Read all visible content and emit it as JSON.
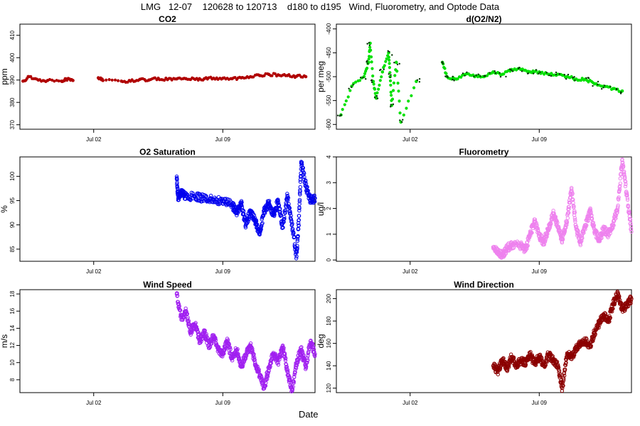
{
  "page": {
    "title": "LMG   12-07    120628 to 120713    d180 to d195   Wind, Fluorometry, and Optode Data",
    "xlabel": "Date"
  },
  "chart_data": [
    {
      "type": "scatter",
      "title": "CO2",
      "ylabel": "ppm",
      "x_axis": {
        "kind": "date",
        "range": [
          "2012-06-28",
          "2012-07-14"
        ],
        "ticks": [
          "Jul 02",
          "Jul 09"
        ]
      },
      "ylim": [
        368,
        415
      ],
      "yticks": [
        370,
        380,
        390,
        400,
        410
      ],
      "color": "#b00000",
      "marker": "circle",
      "series": [
        {
          "points": [
            [
              "2012-06-28T04:00",
              389.5
            ],
            [
              "2012-06-28T12:00",
              391.5
            ],
            [
              "2012-06-29T00:00",
              390
            ],
            [
              "2012-06-29T12:00",
              389.8
            ],
            [
              "2012-06-30T06:00",
              389.5
            ],
            [
              "2012-06-30T12:00",
              390.5
            ],
            [
              "2012-06-30T21:00",
              389.8
            ],
            [
              "2012-07-02T06:00",
              391
            ],
            [
              "2012-07-02T12:00",
              389.8
            ],
            [
              "2012-07-03T12:00",
              389.5
            ],
            [
              "2012-07-04T00:00",
              389.5
            ],
            [
              "2012-07-04T12:00",
              390.3
            ],
            [
              "2012-07-05T00:00",
              390
            ],
            [
              "2012-07-05T12:00",
              390.8
            ],
            [
              "2012-07-06T00:00",
              390.2
            ],
            [
              "2012-07-06T12:00",
              390.5
            ],
            [
              "2012-07-07T00:00",
              390.6
            ],
            [
              "2012-07-07T12:00",
              390.3
            ],
            [
              "2012-07-08T00:00",
              390.6
            ],
            [
              "2012-07-08T12:00",
              390.8
            ],
            [
              "2012-07-09T00:00",
              390.8
            ],
            [
              "2012-07-09T12:00",
              390.6
            ],
            [
              "2012-07-10T00:00",
              391
            ],
            [
              "2012-07-10T12:00",
              391.5
            ],
            [
              "2012-07-11T00:00",
              392
            ],
            [
              "2012-07-11T12:00",
              392.5
            ],
            [
              "2012-07-12T00:00",
              392.3
            ],
            [
              "2012-07-12T12:00",
              392
            ],
            [
              "2012-07-13T00:00",
              391.7
            ],
            [
              "2012-07-13T12:00",
              391.5
            ]
          ]
        }
      ]
    },
    {
      "type": "scatter",
      "title": "d(O2/N2)",
      "ylabel": "per meg",
      "x_axis": {
        "kind": "date",
        "range": [
          "2012-06-28",
          "2012-07-14"
        ],
        "ticks": [
          "Jul 02",
          "Jul 09"
        ]
      },
      "ylim": [
        -610,
        -390
      ],
      "yticks": [
        -600,
        -550,
        -500,
        -450,
        -400
      ],
      "color": "#00e000",
      "secondary_color": "#003000",
      "marker": "circle",
      "series": [
        {
          "points": [
            [
              "2012-06-28T06:00",
              -580
            ],
            [
              "2012-06-28T20:00",
              -520
            ],
            [
              "2012-06-29T12:00",
              -500
            ],
            [
              "2012-06-29T18:00",
              -470
            ],
            [
              "2012-06-29T20:00",
              -430
            ],
            [
              "2012-06-30T00:00",
              -510
            ],
            [
              "2012-06-30T04:00",
              -545
            ],
            [
              "2012-06-30T12:00",
              -490
            ],
            [
              "2012-06-30T20:00",
              -450
            ],
            [
              "2012-06-30T22:00",
              -500
            ],
            [
              "2012-07-01T00:00",
              -560
            ],
            [
              "2012-07-01T06:00",
              -470
            ],
            [
              "2012-07-01T12:00",
              -595
            ],
            [
              "2012-07-02T08:00",
              -510
            ],
            [
              "2012-07-03T18:00",
              -470
            ],
            [
              "2012-07-04T00:00",
              -500
            ],
            [
              "2012-07-04T12:00",
              -505
            ],
            [
              "2012-07-05T00:00",
              -495
            ],
            [
              "2012-07-05T12:00",
              -500
            ],
            [
              "2012-07-06T00:00",
              -500
            ],
            [
              "2012-07-06T12:00",
              -490
            ],
            [
              "2012-07-07T00:00",
              -495
            ],
            [
              "2012-07-07T12:00",
              -485
            ],
            [
              "2012-07-08T00:00",
              -485
            ],
            [
              "2012-07-08T12:00",
              -490
            ],
            [
              "2012-07-09T00:00",
              -490
            ],
            [
              "2012-07-09T12:00",
              -495
            ],
            [
              "2012-07-10T00:00",
              -495
            ],
            [
              "2012-07-10T12:00",
              -500
            ],
            [
              "2012-07-11T00:00",
              -505
            ],
            [
              "2012-07-11T12:00",
              -505
            ],
            [
              "2012-07-12T00:00",
              -515
            ],
            [
              "2012-07-12T12:00",
              -520
            ],
            [
              "2012-07-13T00:00",
              -525
            ],
            [
              "2012-07-13T12:00",
              -530
            ]
          ]
        }
      ]
    },
    {
      "type": "scatter",
      "title": "O2 Saturation",
      "ylabel": "%",
      "x_axis": {
        "kind": "date",
        "range": [
          "2012-06-28",
          "2012-07-14"
        ],
        "ticks": [
          "Jul 02",
          "Jul 09"
        ]
      },
      "ylim": [
        82.5,
        104
      ],
      "yticks": [
        85,
        90,
        95,
        100
      ],
      "color": "#0000ee",
      "marker": "circle",
      "series": [
        {
          "points": [
            [
              "2012-07-06T12:00",
              99.5
            ],
            [
              "2012-07-06T14:00",
              95.5
            ],
            [
              "2012-07-06T18:00",
              96.5
            ],
            [
              "2012-07-07T00:00",
              96
            ],
            [
              "2012-07-07T12:00",
              95.8
            ],
            [
              "2012-07-08T00:00",
              95.5
            ],
            [
              "2012-07-08T12:00",
              95.2
            ],
            [
              "2012-07-09T00:00",
              94.8
            ],
            [
              "2012-07-09T12:00",
              94.2
            ],
            [
              "2012-07-09T18:00",
              92.5
            ],
            [
              "2012-07-10T00:00",
              94.5
            ],
            [
              "2012-07-10T06:00",
              90
            ],
            [
              "2012-07-10T12:00",
              92.8
            ],
            [
              "2012-07-10T18:00",
              91
            ],
            [
              "2012-07-11T00:00",
              88
            ],
            [
              "2012-07-11T06:00",
              93
            ],
            [
              "2012-07-11T12:00",
              94.5
            ],
            [
              "2012-07-11T18:00",
              92
            ],
            [
              "2012-07-12T00:00",
              95
            ],
            [
              "2012-07-12T06:00",
              89.5
            ],
            [
              "2012-07-12T12:00",
              96
            ],
            [
              "2012-07-12T18:00",
              90
            ],
            [
              "2012-07-13T00:00",
              83.5
            ],
            [
              "2012-07-13T03:00",
              91
            ],
            [
              "2012-07-13T06:00",
              103
            ],
            [
              "2012-07-13T12:00",
              98
            ],
            [
              "2012-07-13T18:00",
              95
            ],
            [
              "2012-07-14T00:00",
              95.5
            ]
          ]
        }
      ]
    },
    {
      "type": "scatter",
      "title": "Fluorometry",
      "ylabel": "ug/l",
      "x_axis": {
        "kind": "date",
        "range": [
          "2012-06-28",
          "2012-07-14"
        ],
        "ticks": [
          "Jul 02",
          "Jul 09"
        ]
      },
      "ylim": [
        -0.05,
        4
      ],
      "yticks": [
        0,
        1,
        2,
        3,
        4
      ],
      "color": "#ee82ee",
      "marker": "circle",
      "series": [
        {
          "points": [
            [
              "2012-07-06T12:00",
              0.5
            ],
            [
              "2012-07-06T18:00",
              0.3
            ],
            [
              "2012-07-07T00:00",
              0.2
            ],
            [
              "2012-07-07T06:00",
              0.45
            ],
            [
              "2012-07-07T12:00",
              0.6
            ],
            [
              "2012-07-08T00:00",
              0.55
            ],
            [
              "2012-07-08T06:00",
              0.4
            ],
            [
              "2012-07-08T12:00",
              1.0
            ],
            [
              "2012-07-08T18:00",
              1.5
            ],
            [
              "2012-07-09T00:00",
              0.9
            ],
            [
              "2012-07-09T06:00",
              0.7
            ],
            [
              "2012-07-09T12:00",
              1.2
            ],
            [
              "2012-07-09T18:00",
              1.8
            ],
            [
              "2012-07-10T00:00",
              1.3
            ],
            [
              "2012-07-10T06:00",
              0.8
            ],
            [
              "2012-07-10T12:00",
              1.5
            ],
            [
              "2012-07-10T18:00",
              2.8
            ],
            [
              "2012-07-11T00:00",
              1.2
            ],
            [
              "2012-07-11T06:00",
              0.7
            ],
            [
              "2012-07-11T12:00",
              1.3
            ],
            [
              "2012-07-11T18:00",
              1.9
            ],
            [
              "2012-07-12T00:00",
              1.1
            ],
            [
              "2012-07-12T06:00",
              0.8
            ],
            [
              "2012-07-12T12:00",
              1.2
            ],
            [
              "2012-07-12T18:00",
              1.0
            ],
            [
              "2012-07-13T00:00",
              1.4
            ],
            [
              "2012-07-13T06:00",
              2.0
            ],
            [
              "2012-07-13T12:00",
              3.9
            ],
            [
              "2012-07-13T18:00",
              2.5
            ],
            [
              "2012-07-14T00:00",
              1.1
            ]
          ]
        }
      ]
    },
    {
      "type": "scatter",
      "title": "Wind Speed",
      "ylabel": "m/s",
      "x_axis": {
        "kind": "date",
        "range": [
          "2012-06-28",
          "2012-07-14"
        ],
        "ticks": [
          "Jul 02",
          "Jul 09"
        ]
      },
      "ylim": [
        6.5,
        18.5
      ],
      "yticks": [
        8,
        10,
        12,
        14,
        16,
        18
      ],
      "color": "#a020f0",
      "marker": "circle",
      "series": [
        {
          "points": [
            [
              "2012-07-06T12:00",
              18
            ],
            [
              "2012-07-06T18:00",
              15
            ],
            [
              "2012-07-07T00:00",
              16
            ],
            [
              "2012-07-07T06:00",
              13.5
            ],
            [
              "2012-07-07T12:00",
              14.5
            ],
            [
              "2012-07-07T18:00",
              12.5
            ],
            [
              "2012-07-08T00:00",
              13.5
            ],
            [
              "2012-07-08T06:00",
              12
            ],
            [
              "2012-07-08T12:00",
              13
            ],
            [
              "2012-07-08T18:00",
              11.5
            ],
            [
              "2012-07-09T00:00",
              11
            ],
            [
              "2012-07-09T06:00",
              12.5
            ],
            [
              "2012-07-09T12:00",
              10.5
            ],
            [
              "2012-07-09T18:00",
              11.5
            ],
            [
              "2012-07-10T00:00",
              9.5
            ],
            [
              "2012-07-10T06:00",
              11
            ],
            [
              "2012-07-10T12:00",
              12
            ],
            [
              "2012-07-10T18:00",
              10
            ],
            [
              "2012-07-11T00:00",
              8.5
            ],
            [
              "2012-07-11T06:00",
              7
            ],
            [
              "2012-07-11T12:00",
              9.5
            ],
            [
              "2012-07-11T18:00",
              11
            ],
            [
              "2012-07-12T00:00",
              10
            ],
            [
              "2012-07-12T06:00",
              12
            ],
            [
              "2012-07-12T12:00",
              9
            ],
            [
              "2012-07-12T18:00",
              6.8
            ],
            [
              "2012-07-13T00:00",
              10
            ],
            [
              "2012-07-13T06:00",
              11.5
            ],
            [
              "2012-07-13T12:00",
              9.5
            ],
            [
              "2012-07-13T18:00",
              12.5
            ],
            [
              "2012-07-14T00:00",
              11
            ]
          ]
        }
      ]
    },
    {
      "type": "scatter",
      "title": "Wind Direction",
      "ylabel": "deg",
      "x_axis": {
        "kind": "date",
        "range": [
          "2012-06-28",
          "2012-07-14"
        ],
        "ticks": [
          "Jul 02",
          "Jul 09"
        ]
      },
      "ylim": [
        116,
        208
      ],
      "yticks": [
        120,
        140,
        160,
        180,
        200
      ],
      "color": "#8b0000",
      "marker": "circle",
      "series": [
        {
          "points": [
            [
              "2012-07-06T12:00",
              140
            ],
            [
              "2012-07-06T18:00",
              135
            ],
            [
              "2012-07-07T00:00",
              145
            ],
            [
              "2012-07-07T06:00",
              138
            ],
            [
              "2012-07-07T12:00",
              148
            ],
            [
              "2012-07-07T18:00",
              140
            ],
            [
              "2012-07-08T00:00",
              145
            ],
            [
              "2012-07-08T06:00",
              142
            ],
            [
              "2012-07-08T12:00",
              150
            ],
            [
              "2012-07-08T18:00",
              142
            ],
            [
              "2012-07-09T00:00",
              148
            ],
            [
              "2012-07-09T06:00",
              140
            ],
            [
              "2012-07-09T12:00",
              150
            ],
            [
              "2012-07-09T18:00",
              145
            ],
            [
              "2012-07-10T00:00",
              140
            ],
            [
              "2012-07-10T06:00",
              120
            ],
            [
              "2012-07-10T12:00",
              150
            ],
            [
              "2012-07-10T18:00",
              148
            ],
            [
              "2012-07-11T00:00",
              155
            ],
            [
              "2012-07-11T06:00",
              160
            ],
            [
              "2012-07-11T12:00",
              162
            ],
            [
              "2012-07-11T18:00",
              158
            ],
            [
              "2012-07-12T00:00",
              170
            ],
            [
              "2012-07-12T06:00",
              178
            ],
            [
              "2012-07-12T12:00",
              185
            ],
            [
              "2012-07-12T18:00",
              180
            ],
            [
              "2012-07-13T00:00",
              195
            ],
            [
              "2012-07-13T06:00",
              205
            ],
            [
              "2012-07-13T12:00",
              190
            ],
            [
              "2012-07-13T18:00",
              195
            ],
            [
              "2012-07-14T00:00",
              200
            ]
          ]
        }
      ]
    }
  ]
}
